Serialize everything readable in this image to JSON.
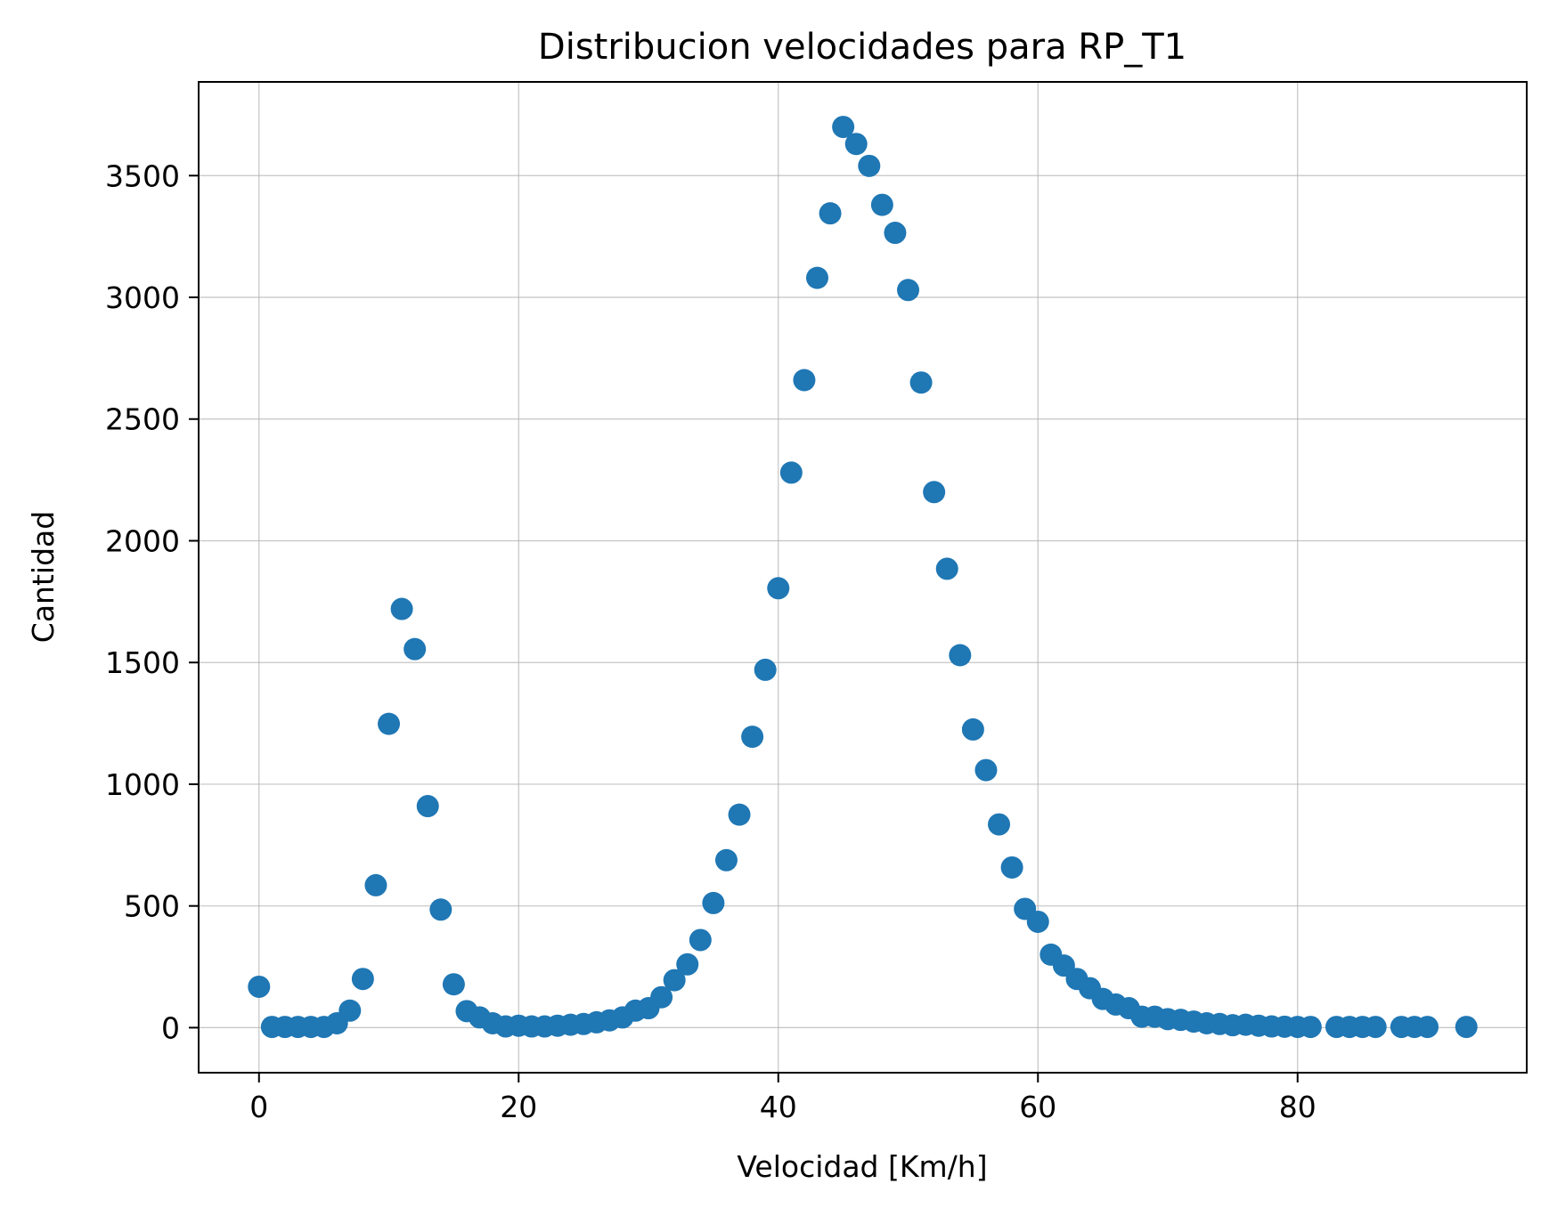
{
  "chart_data": {
    "type": "scatter",
    "title": "Distribucion velocidades para RP_T1",
    "xlabel": "Velocidad [Km/h]",
    "ylabel": "Cantidad",
    "xlim": [
      -4.65,
      97.65
    ],
    "ylim": [
      -185,
      3885
    ],
    "xticks": [
      0,
      20,
      40,
      60,
      80
    ],
    "yticks": [
      0,
      500,
      1000,
      1500,
      2000,
      2500,
      3000,
      3500
    ],
    "grid": true,
    "legend": "none",
    "marker_color": "#1f77b4",
    "x": [
      0,
      1,
      2,
      3,
      4,
      5,
      6,
      7,
      8,
      9,
      10,
      11,
      12,
      13,
      14,
      15,
      16,
      17,
      18,
      19,
      20,
      21,
      22,
      23,
      24,
      25,
      26,
      27,
      28,
      29,
      30,
      31,
      32,
      33,
      34,
      35,
      36,
      37,
      38,
      39,
      40,
      41,
      42,
      43,
      44,
      45,
      46,
      47,
      48,
      49,
      50,
      51,
      52,
      53,
      54,
      55,
      56,
      57,
      58,
      59,
      60,
      61,
      62,
      63,
      64,
      65,
      66,
      67,
      68,
      69,
      70,
      71,
      72,
      73,
      74,
      75,
      76,
      77,
      78,
      79,
      80,
      81,
      83,
      84,
      85,
      86,
      88,
      89,
      90,
      93
    ],
    "y": [
      168,
      3,
      3,
      3,
      3,
      3,
      18,
      70,
      200,
      585,
      1248,
      1720,
      1555,
      910,
      485,
      178,
      68,
      42,
      18,
      5,
      8,
      5,
      5,
      8,
      12,
      15,
      22,
      30,
      42,
      70,
      80,
      125,
      195,
      260,
      360,
      512,
      688,
      875,
      1195,
      1470,
      1805,
      2280,
      2660,
      3080,
      3345,
      3700,
      3630,
      3540,
      3380,
      3265,
      3030,
      2650,
      2200,
      1885,
      1530,
      1225,
      1058,
      835,
      658,
      488,
      435,
      300,
      255,
      200,
      162,
      118,
      95,
      80,
      45,
      45,
      35,
      32,
      25,
      18,
      15,
      10,
      12,
      8,
      5,
      4,
      3,
      3,
      3,
      3,
      3,
      3,
      3,
      3,
      3,
      3
    ]
  }
}
